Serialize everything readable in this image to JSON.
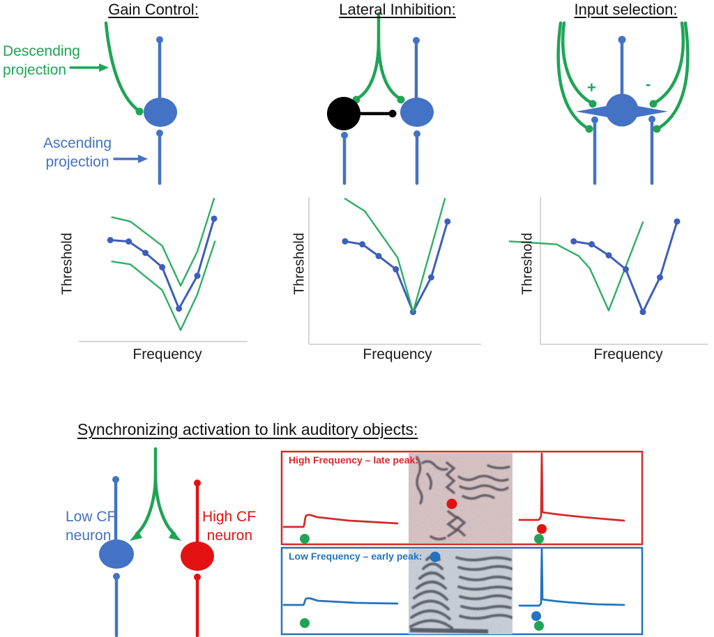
{
  "figure": {
    "top_panels": [
      {
        "title": "Gain Control:"
      },
      {
        "title": "Lateral Inhibition:"
      },
      {
        "title": "Input selection:"
      }
    ],
    "annotations": {
      "descending_projection": [
        "Descending",
        "projection"
      ],
      "ascending_projection": [
        "Ascending",
        "projection"
      ],
      "excitatory_sign": "+",
      "inhibitory_sign": "-"
    },
    "bottom_panel": {
      "title": "Synchronizing activation to link auditory objects:",
      "low_cf_label": [
        "Low CF",
        "neuron"
      ],
      "high_cf_label": [
        "High CF",
        "neuron"
      ],
      "high_freq_box_label": "High Frequency – late peak:",
      "low_freq_box_label": "Low Frequency – early peak:"
    }
  },
  "colors": {
    "neuron_blue": "#4472c4",
    "schematic_green": "#1fa455",
    "red": "#e31212",
    "plot_blue": "#3d5eba",
    "plot_green": "#2fae63",
    "box_red": "#d42a2a",
    "box_blue": "#2273c0",
    "axis_gray": "#d6d6d6",
    "spectrogram_pink_bg": "#dbc7c7",
    "spectrogram_blue_bg": "#cdd4db"
  },
  "chart_data": [
    {
      "type": "line",
      "title": "Gain Control",
      "xlabel": "Frequency",
      "ylabel": "Threshold",
      "xlim": [
        0,
        10
      ],
      "ylim": [
        0,
        10
      ],
      "grid": false,
      "series": [
        {
          "name": "blue_tuning_curve",
          "color": "plot_blue",
          "marker": true,
          "x": [
            1.8,
            2.9,
            3.9,
            4.9,
            5.9,
            7.0,
            8.0
          ],
          "y": [
            7.1,
            7.0,
            6.2,
            5.2,
            2.3,
            4.6,
            8.6
          ]
        },
        {
          "name": "green_upper_curve",
          "color": "plot_green",
          "marker": false,
          "x": [
            1.9,
            3.0,
            4.9,
            6.0,
            7.0,
            8.0
          ],
          "y": [
            8.7,
            8.4,
            6.7,
            3.9,
            6.3,
            10.0
          ]
        },
        {
          "name": "green_lower_curve",
          "color": "plot_green",
          "marker": false,
          "x": [
            1.9,
            3.0,
            4.9,
            6.0,
            7.0,
            8.05
          ],
          "y": [
            5.6,
            5.4,
            3.6,
            0.8,
            3.3,
            7.0
          ]
        }
      ]
    },
    {
      "type": "line",
      "title": "Lateral Inhibition",
      "xlabel": "Frequency",
      "ylabel": "Threshold",
      "xlim": [
        0,
        10
      ],
      "ylim": [
        0,
        10
      ],
      "grid": false,
      "series": [
        {
          "name": "blue_tuning_curve",
          "color": "plot_blue",
          "marker": true,
          "x": [
            2.1,
            3.1,
            4.05,
            5.05,
            6.05,
            7.1,
            8.05
          ],
          "y": [
            7.0,
            6.8,
            6.0,
            5.1,
            2.2,
            4.55,
            8.35
          ]
        },
        {
          "name": "green_curve",
          "color": "plot_green",
          "marker": false,
          "x": [
            2.1,
            3.25,
            5.15,
            6.05,
            7.9
          ],
          "y": [
            9.9,
            9.05,
            5.9,
            2.2,
            9.9
          ]
        }
      ]
    },
    {
      "type": "line",
      "title": "Input selection",
      "xlabel": "Frequency",
      "ylabel": "Threshold",
      "xlim": [
        0,
        10
      ],
      "ylim": [
        0,
        10
      ],
      "grid": false,
      "series": [
        {
          "name": "green_curve",
          "color": "plot_green",
          "marker": false,
          "x": [
            -1.8,
            0.95,
            2.25,
            2.9,
            4.0,
            6.0
          ],
          "y": [
            7.0,
            6.8,
            6.0,
            5.15,
            2.3,
            8.3
          ]
        },
        {
          "name": "blue_tuning_curve",
          "color": "plot_blue",
          "marker": true,
          "x": [
            1.95,
            3.0,
            4.0,
            5.0,
            6.0,
            7.0,
            8.0
          ],
          "y": [
            7.0,
            6.8,
            6.05,
            5.1,
            2.2,
            4.55,
            8.35
          ]
        }
      ]
    }
  ]
}
